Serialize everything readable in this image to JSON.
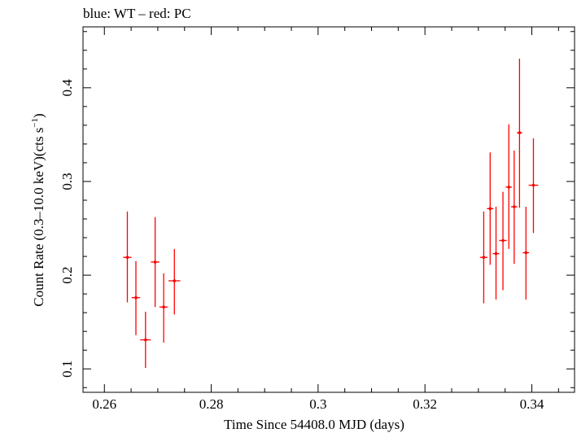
{
  "chart_data": {
    "type": "scatter",
    "title": "blue: WT – red: PC",
    "xlabel": "Time Since 54408.0 MJD (days)",
    "ylabel": {
      "main": "Count Rate (0.3–10.0 keV)(cts s",
      "superscript": "−1",
      "close": ")"
    },
    "xlim": [
      0.256,
      0.348
    ],
    "ylim": [
      0.075,
      0.465
    ],
    "x_ticks": [
      0.26,
      0.28,
      0.3,
      0.32,
      0.34
    ],
    "x_tick_labels": [
      "0.26",
      "0.28",
      "0.3",
      "0.32",
      "0.34"
    ],
    "y_ticks": [
      0.1,
      0.2,
      0.3,
      0.4
    ],
    "y_tick_labels": [
      "0.1",
      "0.2",
      "0.3",
      "0.4"
    ],
    "grid": false,
    "colors": {
      "PC": "#ff0000",
      "WT": "#0000ff",
      "axis": "#000000"
    },
    "series": [
      {
        "name": "PC",
        "color": "#ff0000",
        "points": [
          {
            "x": 0.2643,
            "xerr": 0.0008,
            "y": 0.219,
            "yerr_lo": 0.048,
            "yerr_hi": 0.049
          },
          {
            "x": 0.2659,
            "xerr": 0.0008,
            "y": 0.176,
            "yerr_lo": 0.04,
            "yerr_hi": 0.039
          },
          {
            "x": 0.2677,
            "xerr": 0.001,
            "y": 0.131,
            "yerr_lo": 0.03,
            "yerr_hi": 0.03
          },
          {
            "x": 0.2695,
            "xerr": 0.0008,
            "y": 0.214,
            "yerr_lo": 0.048,
            "yerr_hi": 0.048
          },
          {
            "x": 0.2711,
            "xerr": 0.0008,
            "y": 0.166,
            "yerr_lo": 0.038,
            "yerr_hi": 0.036
          },
          {
            "x": 0.2731,
            "xerr": 0.0011,
            "y": 0.194,
            "yerr_lo": 0.036,
            "yerr_hi": 0.034
          },
          {
            "x": 0.331,
            "xerr": 0.0007,
            "y": 0.219,
            "yerr_lo": 0.049,
            "yerr_hi": 0.049
          },
          {
            "x": 0.3322,
            "xerr": 0.0006,
            "y": 0.271,
            "yerr_lo": 0.06,
            "yerr_hi": 0.06
          },
          {
            "x": 0.3333,
            "xerr": 0.0006,
            "y": 0.223,
            "yerr_lo": 0.049,
            "yerr_hi": 0.05
          },
          {
            "x": 0.3346,
            "xerr": 0.0007,
            "y": 0.237,
            "yerr_lo": 0.053,
            "yerr_hi": 0.052
          },
          {
            "x": 0.3357,
            "xerr": 0.0006,
            "y": 0.294,
            "yerr_lo": 0.066,
            "yerr_hi": 0.067
          },
          {
            "x": 0.3367,
            "xerr": 0.0006,
            "y": 0.273,
            "yerr_lo": 0.061,
            "yerr_hi": 0.06
          },
          {
            "x": 0.3377,
            "xerr": 0.0005,
            "y": 0.352,
            "yerr_lo": 0.08,
            "yerr_hi": 0.079
          },
          {
            "x": 0.3389,
            "xerr": 0.0006,
            "y": 0.224,
            "yerr_lo": 0.05,
            "yerr_hi": 0.049
          },
          {
            "x": 0.3403,
            "xerr": 0.0009,
            "y": 0.296,
            "yerr_lo": 0.051,
            "yerr_hi": 0.05
          }
        ]
      }
    ]
  }
}
